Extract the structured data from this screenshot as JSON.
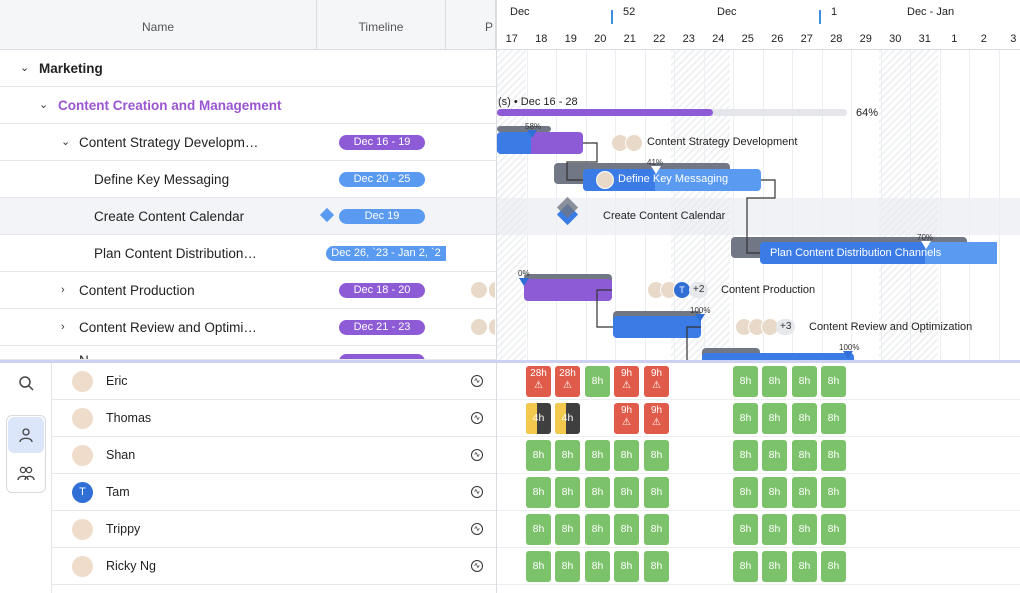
{
  "columns": {
    "name": "Name",
    "timeline": "Timeline",
    "partial": "P"
  },
  "timeline_header": {
    "months": [
      {
        "label": "Dec"
      },
      {
        "label": "52"
      },
      {
        "label": "Dec"
      },
      {
        "label": "1"
      },
      {
        "label": "Dec - Jan"
      }
    ],
    "days": [
      "17",
      "18",
      "19",
      "20",
      "21",
      "22",
      "23",
      "24",
      "25",
      "26",
      "27",
      "28",
      "29",
      "30",
      "31",
      "1",
      "2",
      "3"
    ]
  },
  "tasks": [
    {
      "name": "Marketing"
    },
    {
      "name": "Content Creation and Management"
    },
    {
      "name": "Content Strategy Developm…",
      "timeline": "Dec 16 - 19"
    },
    {
      "name": "Define Key Messaging",
      "timeline": "Dec 20 - 25"
    },
    {
      "name": "Create Content Calendar",
      "timeline": "Dec 19"
    },
    {
      "name": "Plan Content Distribution…",
      "timeline": "Dec 26, `23 - Jan 2, `2"
    },
    {
      "name": "Content Production",
      "timeline": "Dec 18 - 20"
    },
    {
      "name": "Content Review and Optimi…",
      "timeline": "Dec 21 - 23"
    },
    {
      "name": "N…"
    }
  ],
  "gantt": {
    "group_label": "(s) • Dec 16 - 28",
    "group_pct": "64%",
    "bars": [
      {
        "label": "Content Strategy Development",
        "pct": "58%"
      },
      {
        "label": "Define Key Messaging",
        "pct": "41%"
      },
      {
        "label": "Create Content Calendar"
      },
      {
        "label": "Plan Content Distribution Channels",
        "pct": "70%"
      },
      {
        "label": "Content Production",
        "pct": "0%",
        "more": "+2",
        "avatar": "T"
      },
      {
        "label": "Content Review and Optimization",
        "pct": "100%",
        "more": "+3"
      },
      {
        "pct": "100%"
      }
    ]
  },
  "resources": [
    {
      "name": "Eric",
      "cells": [
        [
          "28h",
          "r"
        ],
        [
          "28h",
          "r"
        ],
        [
          "8h",
          "g"
        ],
        [
          "9h",
          "r"
        ],
        [
          "9h",
          "r"
        ],
        null,
        [
          "8h",
          "g"
        ],
        [
          "8h",
          "g"
        ],
        [
          "8h",
          "g"
        ],
        [
          "8h",
          "g"
        ]
      ]
    },
    {
      "name": "Thomas",
      "cells": [
        [
          "4h",
          "y"
        ],
        [
          "4h",
          "y"
        ],
        null,
        [
          "9h",
          "r"
        ],
        [
          "9h",
          "r"
        ],
        null,
        [
          "8h",
          "g"
        ],
        [
          "8h",
          "g"
        ],
        [
          "8h",
          "g"
        ],
        [
          "8h",
          "g"
        ]
      ]
    },
    {
      "name": "Shan",
      "cells": [
        [
          "8h",
          "g"
        ],
        [
          "8h",
          "g"
        ],
        [
          "8h",
          "g"
        ],
        [
          "8h",
          "g"
        ],
        [
          "8h",
          "g"
        ],
        null,
        [
          "8h",
          "g"
        ],
        [
          "8h",
          "g"
        ],
        [
          "8h",
          "g"
        ],
        [
          "8h",
          "g"
        ]
      ]
    },
    {
      "name": "Tam",
      "avatar": "T",
      "cells": [
        [
          "8h",
          "g"
        ],
        [
          "8h",
          "g"
        ],
        [
          "8h",
          "g"
        ],
        [
          "8h",
          "g"
        ],
        [
          "8h",
          "g"
        ],
        null,
        [
          "8h",
          "g"
        ],
        [
          "8h",
          "g"
        ],
        [
          "8h",
          "g"
        ],
        [
          "8h",
          "g"
        ]
      ]
    },
    {
      "name": "Trippy",
      "cells": [
        [
          "8h",
          "g"
        ],
        [
          "8h",
          "g"
        ],
        [
          "8h",
          "g"
        ],
        [
          "8h",
          "g"
        ],
        [
          "8h",
          "g"
        ],
        null,
        [
          "8h",
          "g"
        ],
        [
          "8h",
          "g"
        ],
        [
          "8h",
          "g"
        ],
        [
          "8h",
          "g"
        ]
      ]
    },
    {
      "name": "Ricky Ng",
      "cells": [
        [
          "8h",
          "g"
        ],
        [
          "8h",
          "g"
        ],
        [
          "8h",
          "g"
        ],
        [
          "8h",
          "g"
        ],
        [
          "8h",
          "g"
        ],
        null,
        [
          "8h",
          "g"
        ],
        [
          "8h",
          "g"
        ],
        [
          "8h",
          "g"
        ],
        [
          "8h",
          "g"
        ]
      ]
    }
  ],
  "icons": {
    "search": "search-icon",
    "person": "person-icon",
    "people": "people-icon",
    "activity": "activity-icon",
    "warning": "warning-icon",
    "chevron_down": "chevron-down-icon",
    "chevron_right": "chevron-right-icon"
  },
  "colors": {
    "purple": "#8e5bd6",
    "blue": "#3b7be6",
    "light_blue": "#5a9af0",
    "green": "#7cc26a",
    "red": "#e05b4a",
    "yellow": "#f2c94c"
  }
}
